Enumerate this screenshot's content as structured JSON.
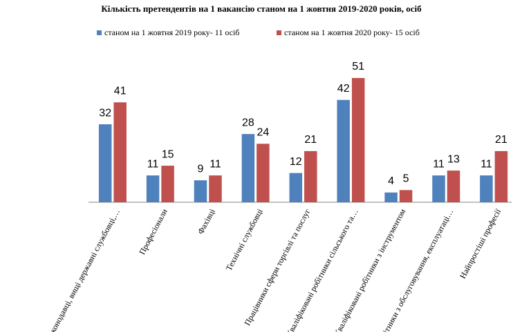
{
  "chart_data": {
    "type": "bar",
    "title": "Кількість претендентів на 1 вакансію станом на 1 жовтня 2019-2020 років, осіб",
    "categories": [
      "Законодавці, вищі державні службовці,…",
      "Професіонали",
      "Фахівці",
      "Технічні службовці",
      "Працівники сфери торгівлі та послуг",
      "Кваліфіковані робітники сільського та…",
      "Кваліфіковані робітники з інструментом",
      "Робітники з обслуговування, експлуатаці…",
      "Найпростіші професії"
    ],
    "series": [
      {
        "name": "станом на 1 жовтня  2019 року- 11 осіб",
        "color": "#4f81bd",
        "values": [
          32,
          11,
          9,
          28,
          12,
          42,
          4,
          11,
          11
        ]
      },
      {
        "name": "станом на 1 жовтня  2020 року- 15 осіб",
        "color": "#c0504d",
        "values": [
          41,
          15,
          11,
          24,
          21,
          51,
          5,
          13,
          21
        ]
      }
    ],
    "legend": "top"
  }
}
